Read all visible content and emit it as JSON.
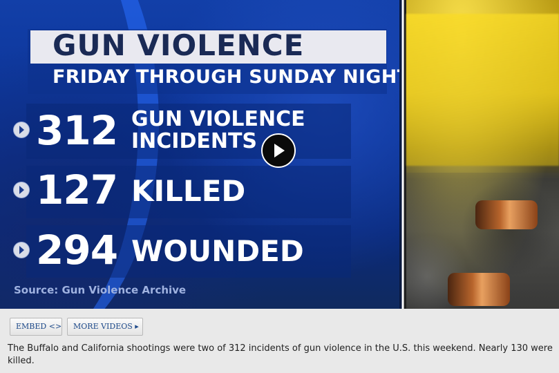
{
  "video": {
    "title_line1": "GUN VIOLENCE",
    "title_line2": "FRIDAY THROUGH SUNDAY NIGHT",
    "stats": [
      {
        "number": "312",
        "label_line1": "GUN VIOLENCE",
        "label_line2": "INCIDENTS"
      },
      {
        "number": "127",
        "label_line1": "KILLED",
        "label_line2": ""
      },
      {
        "number": "294",
        "label_line1": "WOUNDED",
        "label_line2": ""
      }
    ],
    "source": "Source: Gun Violence Archive",
    "play_icon": "play-icon"
  },
  "controls": {
    "embed_label": "EMBED <>",
    "more_videos_label": "MORE VIDEOS ▸"
  },
  "caption": "The Buffalo and California shootings were two of 312 incidents of gun violence in the U.S. this weekend. Nearly 130 were killed.",
  "colors": {
    "graphic_blue": "#0b3294",
    "title_bar": "#e9e9f0",
    "title_text": "#1a2a55",
    "link_blue": "#1e4a8a"
  }
}
